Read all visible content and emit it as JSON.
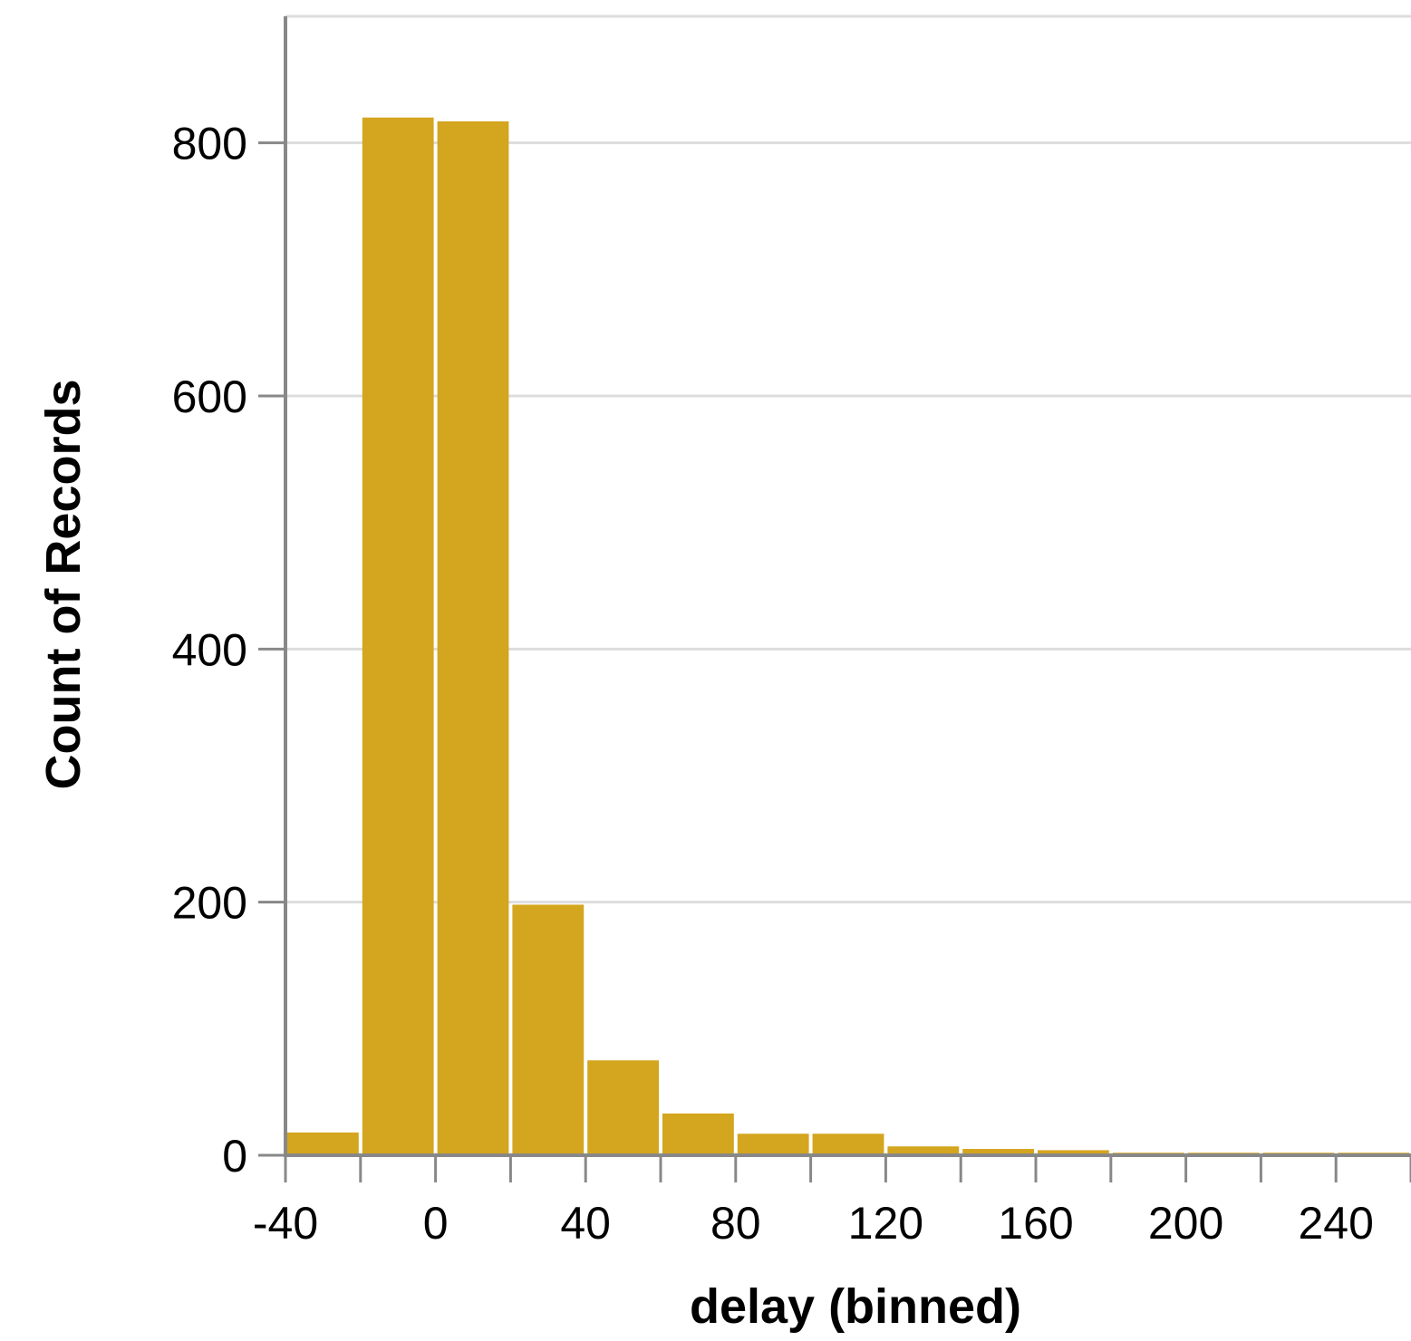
{
  "chart_data": {
    "type": "bar",
    "xlabel": "delay (binned)",
    "ylabel": "Count of Records",
    "bins": [
      {
        "start": -40,
        "end": -20,
        "count": 18
      },
      {
        "start": -20,
        "end": 0,
        "count": 820
      },
      {
        "start": 0,
        "end": 20,
        "count": 817
      },
      {
        "start": 20,
        "end": 40,
        "count": 198
      },
      {
        "start": 40,
        "end": 60,
        "count": 75
      },
      {
        "start": 60,
        "end": 80,
        "count": 33
      },
      {
        "start": 80,
        "end": 100,
        "count": 17
      },
      {
        "start": 100,
        "end": 120,
        "count": 17
      },
      {
        "start": 120,
        "end": 140,
        "count": 7
      },
      {
        "start": 140,
        "end": 160,
        "count": 5
      },
      {
        "start": 160,
        "end": 180,
        "count": 4
      },
      {
        "start": 180,
        "end": 200,
        "count": 2
      },
      {
        "start": 200,
        "end": 220,
        "count": 2
      },
      {
        "start": 220,
        "end": 240,
        "count": 2
      },
      {
        "start": 240,
        "end": 260,
        "count": 2
      }
    ],
    "x_ticks": [
      "-40",
      "0",
      "40",
      "80",
      "120",
      "160",
      "200",
      "240"
    ],
    "x_tick_values": [
      -40,
      0,
      40,
      80,
      120,
      160,
      200,
      240
    ],
    "y_ticks": [
      "0",
      "200",
      "400",
      "600",
      "800"
    ],
    "y_tick_values": [
      0,
      200,
      400,
      600,
      800
    ],
    "xlim": [
      -40,
      260
    ],
    "ylim": [
      0,
      900
    ],
    "grid": true,
    "bar_color": "#D4A51E",
    "grid_color": "#DDDDDD",
    "axis_color": "#888888"
  }
}
